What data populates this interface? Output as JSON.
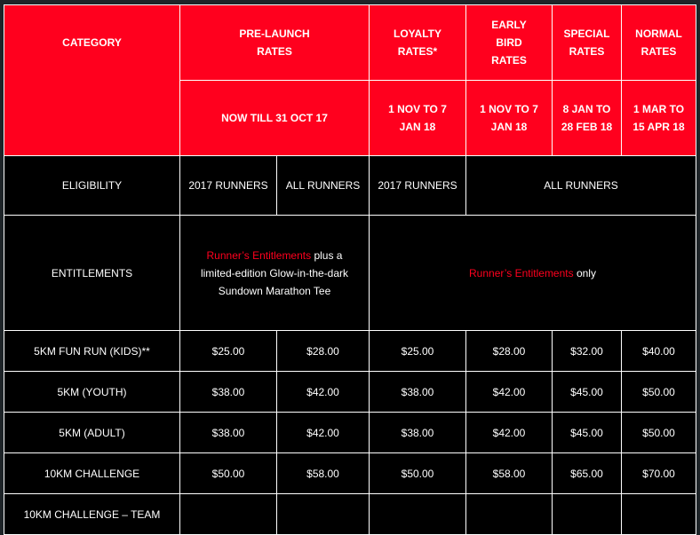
{
  "header": {
    "category": "CATEGORY",
    "pre_launch": {
      "title": "PRE-LAUNCH RATES",
      "period": "NOW TILL 31 OCT 17"
    },
    "loyalty": {
      "title": "LOYALTY RATES*",
      "period": "1 NOV TO 7 JAN 18"
    },
    "early_bird": {
      "title": "EARLY BIRD RATES",
      "period": "1 NOV TO 7 JAN 18"
    },
    "special": {
      "title": "SPECIAL RATES",
      "period": "8 JAN TO 28 FEB 18"
    },
    "normal": {
      "title": "NORMAL RATES",
      "period": "1 MAR TO 15 APR 18"
    }
  },
  "eligibility": {
    "label": "ELIGIBILITY",
    "pre_launch_2017": "2017 RUNNERS",
    "pre_launch_all": "ALL RUNNERS",
    "loyalty": "2017 RUNNERS",
    "others": "ALL RUNNERS"
  },
  "entitlements": {
    "label": "ENTITLEMENTS",
    "link_text": "Runner’s Entitlements",
    "pre_launch_suffix": " plus a limited-edition Glow-in-the-dark Sundown Marathon Tee",
    "others_suffix": " only"
  },
  "rows": [
    {
      "category": "5KM FUN RUN (KIDS)**",
      "prices": [
        "$25.00",
        "$28.00",
        "$25.00",
        "$28.00",
        "$32.00",
        "$40.00"
      ]
    },
    {
      "category": "5KM (YOUTH)",
      "prices": [
        "$38.00",
        "$42.00",
        "$38.00",
        "$42.00",
        "$45.00",
        "$50.00"
      ]
    },
    {
      "category": "5KM (ADULT)",
      "prices": [
        "$38.00",
        "$42.00",
        "$38.00",
        "$42.00",
        "$45.00",
        "$50.00"
      ]
    },
    {
      "category": "10KM CHALLENGE",
      "prices": [
        "$50.00",
        "$58.00",
        "$50.00",
        "$58.00",
        "$65.00",
        "$70.00"
      ]
    },
    {
      "category": "10KM CHALLENGE – TEAM",
      "prices": [
        "",
        "",
        "",
        "",
        "",
        ""
      ]
    }
  ],
  "colors": {
    "accent": "#ff001e",
    "background": "#000000"
  }
}
